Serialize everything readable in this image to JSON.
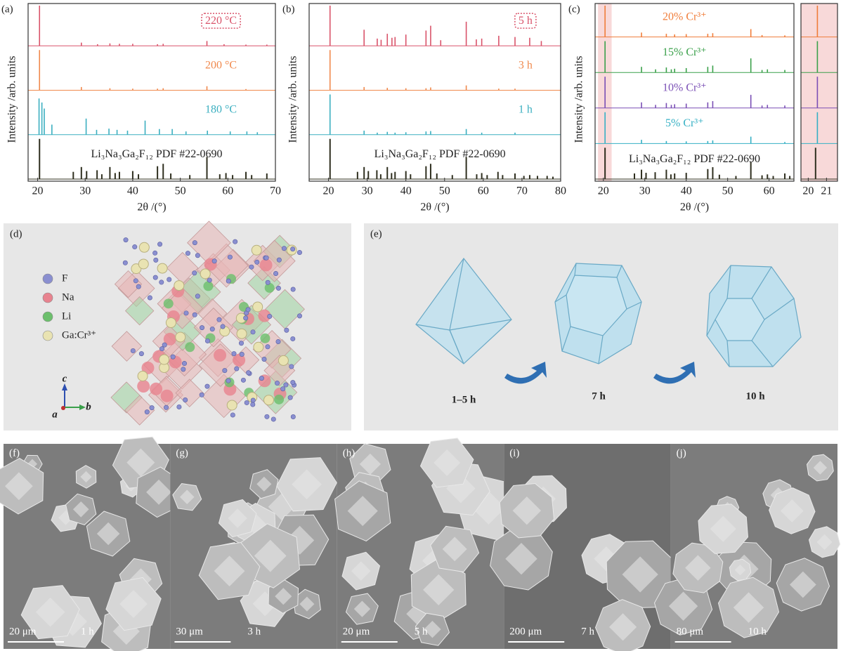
{
  "chart_data": [
    {
      "type": "stem",
      "label": "(a)",
      "ylabel": "Intensity /arb. units",
      "xlabel": "2θ /(°)",
      "xlim": [
        18,
        70
      ],
      "xticks": [
        20,
        30,
        40,
        50,
        60,
        70
      ],
      "series": [
        {
          "name": "220 °C",
          "color": "#d9536a",
          "boxed": true,
          "x": [
            20.4,
            29.2,
            32.6,
            35.2,
            37.2,
            40.0,
            45.2,
            46.4,
            55.6,
            59.2,
            63.8,
            68.2
          ],
          "values": [
            100,
            8,
            4,
            6,
            5,
            5,
            4,
            5,
            12,
            4,
            3,
            3
          ]
        },
        {
          "name": "200 °C",
          "color": "#f0894d",
          "x": [
            20.4,
            29.2,
            35.2,
            40.0,
            45.2,
            46.4,
            55.6,
            63.8
          ],
          "values": [
            100,
            8,
            5,
            4,
            4,
            5,
            10,
            3
          ]
        },
        {
          "name": "180 °C",
          "color": "#3bafc0",
          "x": [
            20.3,
            20.9,
            21.4,
            23.0,
            30.2,
            32.4,
            35.0,
            36.7,
            38.9,
            42.6,
            45.6,
            48.3,
            51.2,
            55.7,
            60.5,
            64.0,
            66.2
          ],
          "values": [
            90,
            80,
            65,
            25,
            40,
            12,
            15,
            12,
            10,
            35,
            14,
            14,
            8,
            10,
            8,
            8,
            6
          ]
        },
        {
          "name": "Li₃Na₃Ga₂F₁₂ PDF #22-0690",
          "color": "#2f2f1f",
          "x": [
            20.4,
            27.5,
            29.2,
            30.3,
            32.5,
            33.5,
            35.2,
            36.3,
            37.2,
            40.0,
            41.2,
            45.2,
            46.4,
            48.0,
            52.0,
            55.6,
            58.3,
            59.6,
            61.0,
            63.8,
            65.0,
            68.2
          ],
          "values": [
            100,
            18,
            30,
            20,
            22,
            12,
            30,
            15,
            18,
            20,
            12,
            32,
            38,
            14,
            10,
            55,
            12,
            15,
            10,
            18,
            10,
            14
          ]
        }
      ]
    },
    {
      "type": "stem",
      "label": "(b)",
      "ylabel": "Intensity /arb. units",
      "xlabel": "2θ /(°)",
      "xlim": [
        15,
        80
      ],
      "xticks": [
        20,
        30,
        40,
        50,
        60,
        70,
        80
      ],
      "series": [
        {
          "name": "5 h",
          "color": "#d9536a",
          "boxed": true,
          "x": [
            20.4,
            29.2,
            32.6,
            33.6,
            35.2,
            36.4,
            37.2,
            40.0,
            45.2,
            46.4,
            49.0,
            55.6,
            58.2,
            59.6,
            64.0,
            68.2,
            72.0,
            75.0
          ],
          "values": [
            100,
            40,
            18,
            15,
            30,
            20,
            22,
            28,
            38,
            50,
            14,
            60,
            16,
            18,
            25,
            22,
            20,
            12
          ]
        },
        {
          "name": "3 h",
          "color": "#f0894d",
          "x": [
            20.4,
            29.2,
            35.2,
            40.0,
            45.2,
            46.4,
            55.6,
            64.0,
            68.2
          ],
          "values": [
            100,
            8,
            6,
            5,
            5,
            7,
            12,
            4,
            4
          ]
        },
        {
          "name": "1 h",
          "color": "#3bafc0",
          "x": [
            20.4,
            29.2,
            32.6,
            35.2,
            37.2,
            40.0,
            45.2,
            46.4,
            55.6,
            59.6,
            68.2
          ],
          "values": [
            100,
            10,
            5,
            7,
            5,
            6,
            8,
            9,
            14,
            5,
            5
          ]
        },
        {
          "name": "Li₃Na₃Ga₂F₁₂ PDF #22-0690",
          "color": "#2f2f1f",
          "x": [
            20.4,
            27.5,
            29.2,
            30.3,
            32.5,
            33.5,
            35.2,
            36.3,
            37.2,
            40.0,
            41.2,
            45.2,
            46.4,
            48.0,
            52.0,
            55.6,
            58.3,
            59.6,
            61.0,
            63.8,
            65.0,
            68.2,
            70.5,
            72.0,
            74.0,
            76.5,
            78.0
          ],
          "values": [
            100,
            18,
            30,
            20,
            22,
            12,
            30,
            15,
            18,
            20,
            12,
            32,
            38,
            14,
            10,
            55,
            12,
            15,
            10,
            18,
            10,
            14,
            8,
            10,
            8,
            8,
            6
          ]
        }
      ]
    },
    {
      "type": "stem",
      "label": "(c)",
      "ylabel": "Intensity /arb. units",
      "xlabel": "2θ /(°)",
      "xlim": [
        18,
        66
      ],
      "xticks": [
        20,
        30,
        40,
        50,
        60
      ],
      "shade": [
        18.7,
        22
      ],
      "series": [
        {
          "name": "20% Cr³⁺",
          "color": "#f07d3a",
          "x": [
            20.4,
            29.2,
            35.2,
            37.2,
            40.0,
            45.2,
            46.4,
            55.6,
            58.3,
            63.8
          ],
          "values": [
            100,
            14,
            10,
            8,
            9,
            10,
            12,
            25,
            6,
            5
          ]
        },
        {
          "name": "15% Cr³⁺",
          "color": "#3aa04a",
          "x": [
            20.4,
            29.2,
            32.6,
            35.2,
            36.4,
            37.2,
            40.0,
            45.2,
            46.4,
            55.6,
            58.3,
            59.6,
            63.8
          ],
          "values": [
            100,
            18,
            10,
            16,
            10,
            12,
            14,
            18,
            22,
            45,
            8,
            10,
            8
          ]
        },
        {
          "name": "10% Cr³⁺",
          "color": "#7a4fb5",
          "x": [
            20.4,
            29.2,
            32.6,
            35.2,
            36.4,
            37.2,
            40.0,
            45.2,
            46.4,
            55.6,
            58.3,
            59.6,
            63.8
          ],
          "values": [
            100,
            18,
            10,
            16,
            10,
            12,
            14,
            18,
            22,
            42,
            8,
            10,
            8
          ]
        },
        {
          "name": "5% Cr³⁺",
          "color": "#35b0c4",
          "x": [
            20.4,
            29.2,
            35.2,
            40.0,
            45.2,
            46.4,
            55.6,
            63.8
          ],
          "values": [
            100,
            12,
            8,
            7,
            8,
            10,
            22,
            5
          ]
        },
        {
          "name": "Li₃Na₃Ga₂F₁₂ PDF #22-0690",
          "color": "#2f2f1f",
          "x": [
            20.4,
            27.5,
            29.2,
            30.3,
            32.5,
            35.2,
            36.3,
            37.2,
            40.0,
            45.2,
            46.4,
            48.0,
            52.0,
            55.6,
            58.3,
            59.6,
            61.0,
            63.8,
            65.0
          ],
          "values": [
            100,
            18,
            30,
            20,
            22,
            30,
            15,
            18,
            20,
            32,
            38,
            14,
            10,
            55,
            12,
            15,
            10,
            18,
            10
          ]
        }
      ]
    },
    {
      "type": "stem",
      "xlim": [
        19.6,
        21.6
      ],
      "xticks": [
        20,
        21
      ],
      "shade": [
        19.6,
        21.6
      ],
      "series": [
        {
          "color": "#f07d3a",
          "x": [
            20.5
          ],
          "values": [
            100
          ]
        },
        {
          "color": "#3aa04a",
          "x": [
            20.5
          ],
          "values": [
            100
          ]
        },
        {
          "color": "#7a4fb5",
          "x": [
            20.5
          ],
          "values": [
            100
          ]
        },
        {
          "color": "#35b0c4",
          "x": [
            20.5
          ],
          "values": [
            100
          ]
        },
        {
          "color": "#2f2f1f",
          "x": [
            20.4
          ],
          "values": [
            100
          ]
        }
      ]
    }
  ],
  "structure": {
    "label": "(d)",
    "legend": [
      {
        "name": "F",
        "color": "#8a8fd0"
      },
      {
        "name": "Na",
        "color": "#e8838f"
      },
      {
        "name": "Li",
        "color": "#6cbf6c"
      },
      {
        "name": "Ga:Cr³⁺",
        "color": "#e9e3b2"
      }
    ],
    "axes": [
      "c",
      "a",
      "b"
    ]
  },
  "morphology": {
    "label": "(e)",
    "stages": [
      "1–5 h",
      "7 h",
      "10 h"
    ]
  },
  "sem": [
    {
      "label": "(f)",
      "scale": "20 μm",
      "time": "1 h"
    },
    {
      "label": "(g)",
      "scale": "30 μm",
      "time": "3 h"
    },
    {
      "label": "(h)",
      "scale": "20 μm",
      "time": "5 h"
    },
    {
      "label": "(i)",
      "scale": "200 μm",
      "time": "7 h"
    },
    {
      "label": "(j)",
      "scale": "80 μm",
      "time": "10 h"
    }
  ]
}
